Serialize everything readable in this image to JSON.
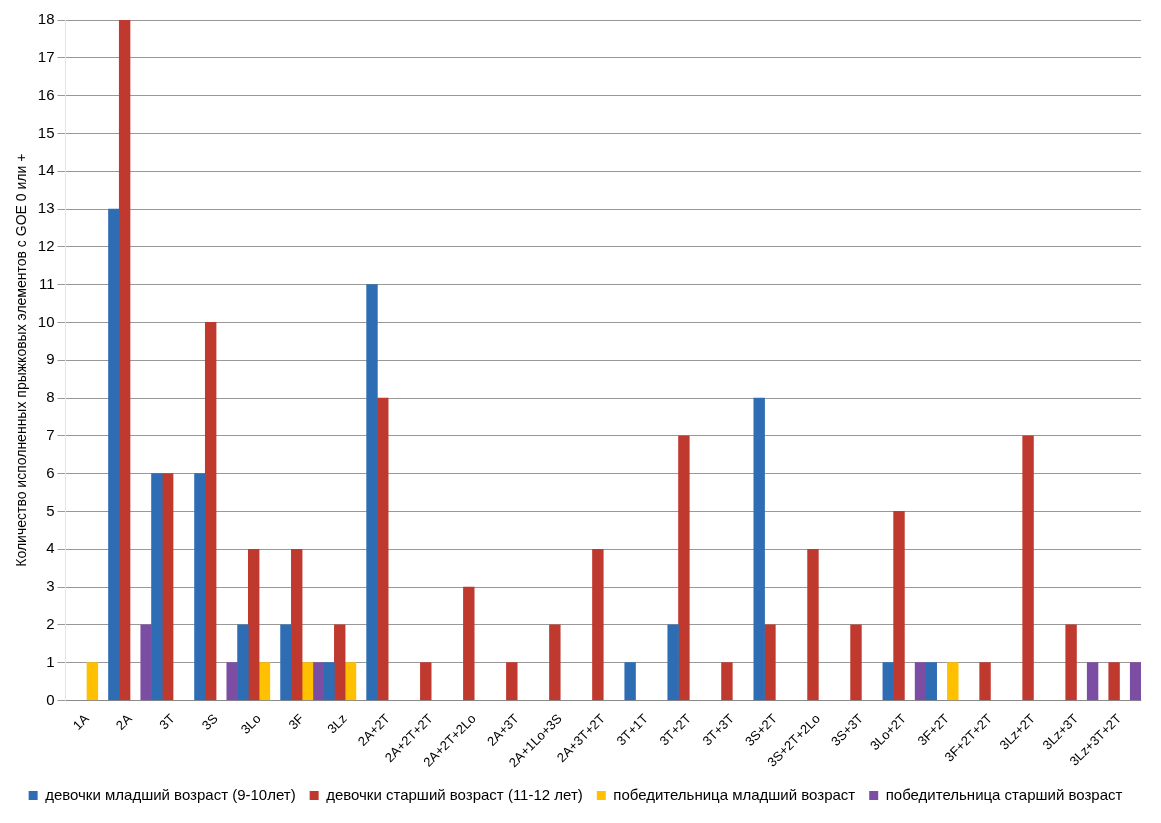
{
  "chart_data": {
    "type": "bar",
    "ylabel": "Количество исполненных прыжковых элементов с GOE 0 или +",
    "categories": [
      "1A",
      "2A",
      "3T",
      "3S",
      "3Lo",
      "3F",
      "3Lz",
      "2A+2T",
      "2A+2T+2T",
      "2A+2T+2Lo",
      "2A+3T",
      "2A+1Lo+3S",
      "2A+3T+2T",
      "3T+1T",
      "3T+2T",
      "3T+3T",
      "3S+2T",
      "3S+2T+2Lo",
      "3S+3T",
      "3Lo+2T",
      "3F+2T",
      "3F+2T+2T",
      "3Lz+2T",
      "3Lz+3T",
      "3Lz+3T+2T"
    ],
    "series": [
      {
        "name": "девочки младший возраст (9-10лет)",
        "color": "#2e6db4",
        "values": [
          null,
          13,
          6,
          6,
          2,
          2,
          1,
          11,
          null,
          null,
          null,
          null,
          null,
          1,
          2,
          null,
          8,
          null,
          null,
          1,
          1,
          null,
          null,
          null,
          null
        ]
      },
      {
        "name": "девочки старший возраст (11-12 лет)",
        "color": "#c0392f",
        "values": [
          null,
          18,
          6,
          10,
          4,
          4,
          2,
          8,
          1,
          3,
          1,
          2,
          4,
          null,
          7,
          1,
          2,
          4,
          2,
          5,
          null,
          1,
          7,
          2,
          1
        ]
      },
      {
        "name": "победительница младший возраст",
        "color": "#ffc000",
        "values": [
          1,
          null,
          null,
          null,
          1,
          1,
          1,
          null,
          null,
          null,
          null,
          null,
          null,
          null,
          null,
          null,
          null,
          null,
          null,
          null,
          1,
          null,
          null,
          null,
          null
        ]
      },
      {
        "name": "победительница старший возраст",
        "color": "#7b4ea3",
        "values": [
          null,
          2,
          null,
          1,
          null,
          1,
          null,
          null,
          null,
          null,
          null,
          null,
          null,
          null,
          null,
          null,
          null,
          null,
          null,
          1,
          null,
          null,
          null,
          1,
          1
        ]
      }
    ],
    "ylim": [
      0,
      18
    ],
    "yticks": [
      0,
      1,
      2,
      3,
      4,
      5,
      6,
      7,
      8,
      9,
      10,
      11,
      12,
      13,
      14,
      15,
      16,
      17,
      18
    ],
    "grid": "y",
    "legend": "bottom"
  }
}
